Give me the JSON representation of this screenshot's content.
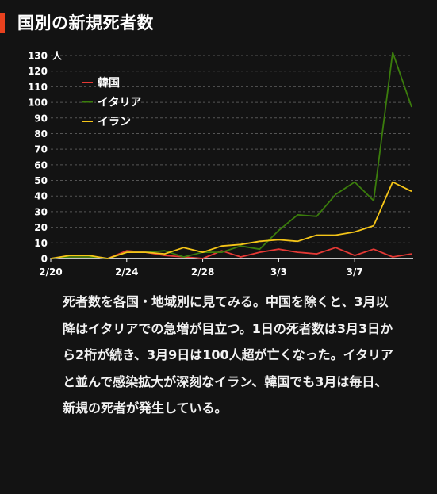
{
  "header": {
    "title": "国別の新規死者数"
  },
  "caption": "死者数を各国・地域別に見てみる。中国を除くと、3月以降はイタリアでの急増が目立つ。1日の死者数は3月3日から2桁が続き、3月9日は100人超が亡くなった。イタリアと並んで感染拡大が深刻なイラン、韓国でも3月は毎日、新規の死者が発生している。",
  "chart_data": {
    "type": "line",
    "title": "国別の新規死者数",
    "ylabel": "人",
    "xlabel": "",
    "ylim": [
      0,
      130
    ],
    "yticks": [
      0,
      10,
      20,
      30,
      40,
      50,
      60,
      70,
      80,
      90,
      100,
      110,
      120,
      130
    ],
    "xtick_labels": [
      {
        "index": 0,
        "label": "2/20"
      },
      {
        "index": 4,
        "label": "2/24"
      },
      {
        "index": 8,
        "label": "2/28"
      },
      {
        "index": 12,
        "label": "3/3"
      },
      {
        "index": 16,
        "label": "3/7"
      }
    ],
    "x": [
      "2/20",
      "2/21",
      "2/22",
      "2/23",
      "2/24",
      "2/25",
      "2/26",
      "2/27",
      "2/28",
      "2/29",
      "3/1",
      "3/2",
      "3/3",
      "3/4",
      "3/5",
      "3/6",
      "3/7",
      "3/8",
      "3/9",
      "3/10"
    ],
    "grid": true,
    "legend_position": "top-left",
    "series": [
      {
        "name": "韓国",
        "color": "#e53935",
        "values": [
          0,
          1,
          1,
          0,
          5,
          4,
          2,
          1,
          0,
          5,
          1,
          4,
          6,
          4,
          3,
          7,
          2,
          6,
          1,
          3
        ]
      },
      {
        "name": "イタリア",
        "color": "#3b7d0c",
        "values": [
          0,
          1,
          1,
          0,
          4,
          4,
          5,
          1,
          4,
          4,
          8,
          6,
          18,
          28,
          27,
          41,
          49,
          37,
          132,
          97
        ]
      },
      {
        "name": "イラン",
        "color": "#f5c518",
        "values": [
          0,
          2,
          2,
          0,
          4,
          4,
          3,
          7,
          4,
          8,
          9,
          11,
          12,
          11,
          15,
          15,
          17,
          21,
          49,
          43
        ]
      }
    ]
  }
}
